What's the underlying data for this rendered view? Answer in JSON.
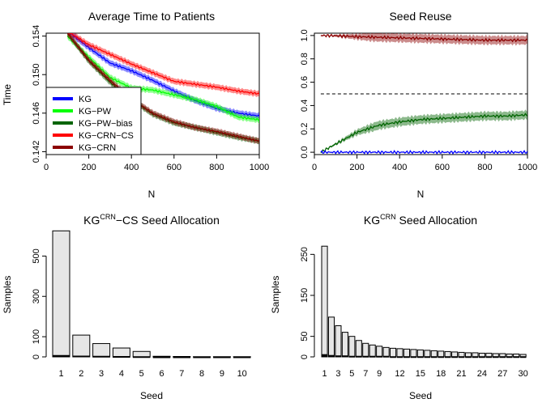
{
  "chart_data": [
    {
      "type": "line",
      "title": "Average Time to Patients",
      "xlabel": "N",
      "ylabel": "Time",
      "xlim": [
        0,
        1000
      ],
      "ylim": [
        0.1417,
        0.1543
      ],
      "xticks": [
        0,
        200,
        400,
        600,
        800,
        1000
      ],
      "yticks": [
        0.142,
        0.146,
        0.15,
        0.154
      ],
      "ytick_labels": [
        "0.142",
        "0.146",
        "0.150",
        "0.154"
      ],
      "legend": "bottom-left",
      "series": [
        {
          "name": "KG",
          "color": "#0000ff",
          "x": [
            100,
            200,
            300,
            400,
            500,
            600,
            700,
            800,
            900,
            1000
          ],
          "y": [
            0.1545,
            0.1528,
            0.1512,
            0.1504,
            0.1494,
            0.1483,
            0.1473,
            0.1465,
            0.146,
            0.1457
          ]
        },
        {
          "name": "KG−PW",
          "color": "#00ff00",
          "x": [
            100,
            200,
            300,
            400,
            500,
            600,
            700,
            800,
            900,
            1000
          ],
          "y": [
            0.154,
            0.1518,
            0.1497,
            0.1486,
            0.1484,
            0.1479,
            0.1474,
            0.1467,
            0.1456,
            0.1453
          ]
        },
        {
          "name": "KG−PW−bias",
          "color": "#006400",
          "x": [
            100,
            200,
            300,
            400,
            500,
            600,
            700,
            800,
            900,
            1000
          ],
          "y": [
            0.1543,
            0.1514,
            0.1492,
            0.1474,
            0.1459,
            0.145,
            0.1445,
            0.144,
            0.1435,
            0.1431
          ]
        },
        {
          "name": "KG−CRN−CS",
          "color": "#ff0000",
          "x": [
            100,
            200,
            300,
            400,
            500,
            600,
            700,
            800,
            900,
            1000
          ],
          "y": [
            0.1545,
            0.1531,
            0.1521,
            0.1511,
            0.1502,
            0.1493,
            0.149,
            0.1487,
            0.1483,
            0.148
          ]
        },
        {
          "name": "KG−CRN",
          "color": "#8b0000",
          "x": [
            100,
            200,
            300,
            400,
            500,
            600,
            700,
            800,
            900,
            1000
          ],
          "y": [
            0.1543,
            0.1515,
            0.1494,
            0.1475,
            0.146,
            0.1451,
            0.1445,
            0.1441,
            0.1436,
            0.1431
          ]
        }
      ]
    },
    {
      "type": "line",
      "title": "Seed Reuse",
      "xlabel": "N",
      "ylabel": "",
      "xlim": [
        0,
        1000
      ],
      "ylim": [
        -0.02,
        1.02
      ],
      "xticks": [
        0,
        200,
        400,
        600,
        800,
        1000
      ],
      "yticks": [
        0.0,
        0.2,
        0.4,
        0.6,
        0.8,
        1.0
      ],
      "ytick_labels": [
        "0.0",
        "0.2",
        "0.4",
        "0.6",
        "0.8",
        "1.0"
      ],
      "reference_line": {
        "y": 0.5,
        "style": "dashed"
      },
      "series": [
        {
          "color": "#8b0000",
          "x": [
            30,
            100,
            200,
            300,
            400,
            500,
            600,
            700,
            800,
            900,
            1000
          ],
          "y": [
            1.0,
            0.998,
            0.99,
            0.985,
            0.98,
            0.975,
            0.97,
            0.965,
            0.96,
            0.96,
            0.96
          ]
        },
        {
          "color": "#006400",
          "x": [
            30,
            100,
            200,
            300,
            400,
            500,
            600,
            700,
            800,
            900,
            1000
          ],
          "y": [
            0.0,
            0.07,
            0.17,
            0.23,
            0.26,
            0.28,
            0.29,
            0.3,
            0.31,
            0.31,
            0.32
          ]
        },
        {
          "color": "#0000ff",
          "x": [
            30,
            1000
          ],
          "y": [
            0.0,
            0.0
          ]
        }
      ]
    },
    {
      "type": "bar",
      "title_base": "KG",
      "title_sup": "CRN",
      "title_rest": "−CS Seed Allocation",
      "xlabel": "Seed",
      "ylabel": "Samples",
      "ylim": [
        0,
        610
      ],
      "yticks": [
        0,
        100,
        300,
        500
      ],
      "ytick_labels": [
        "0",
        "100",
        "300",
        "500"
      ],
      "categories": [
        "1",
        "2",
        "3",
        "4",
        "5",
        "6",
        "7",
        "8",
        "9",
        "10"
      ],
      "values": [
        625,
        108,
        66,
        44,
        27,
        3,
        2,
        1,
        1,
        1
      ],
      "dark_values": [
        8,
        5,
        4,
        3,
        2,
        1,
        1,
        1,
        1,
        1
      ]
    },
    {
      "type": "bar",
      "title_base": "KG",
      "title_sup": "CRN",
      "title_rest": " Seed Allocation",
      "xlabel": "Seed",
      "ylabel": "Samples",
      "ylim": [
        0,
        300
      ],
      "yticks": [
        0,
        50,
        150,
        250
      ],
      "ytick_labels": [
        "0",
        "50",
        "150",
        "250"
      ],
      "categories": [
        "1",
        "2",
        "3",
        "4",
        "5",
        "6",
        "7",
        "8",
        "9",
        "10",
        "11",
        "12",
        "13",
        "14",
        "15",
        "16",
        "17",
        "18",
        "19",
        "20",
        "21",
        "22",
        "23",
        "24",
        "25",
        "26",
        "27",
        "28",
        "29",
        "30"
      ],
      "tick_labels": [
        "1",
        "3",
        "5",
        "7",
        "9",
        "12",
        "15",
        "18",
        "21",
        "24",
        "27",
        "30"
      ],
      "values": [
        270,
        97,
        76,
        60,
        50,
        40,
        33,
        29,
        26,
        23,
        21,
        20,
        19,
        18,
        17,
        16,
        15,
        14,
        13,
        12,
        11,
        10,
        10,
        9,
        9,
        8,
        8,
        7,
        7,
        6
      ],
      "dark_values": [
        6,
        4,
        3,
        3,
        2,
        2,
        2,
        2,
        2,
        2,
        1,
        1,
        1,
        1,
        1,
        1,
        1,
        1,
        1,
        1,
        1,
        1,
        1,
        1,
        1,
        1,
        1,
        1,
        1,
        1
      ]
    }
  ]
}
